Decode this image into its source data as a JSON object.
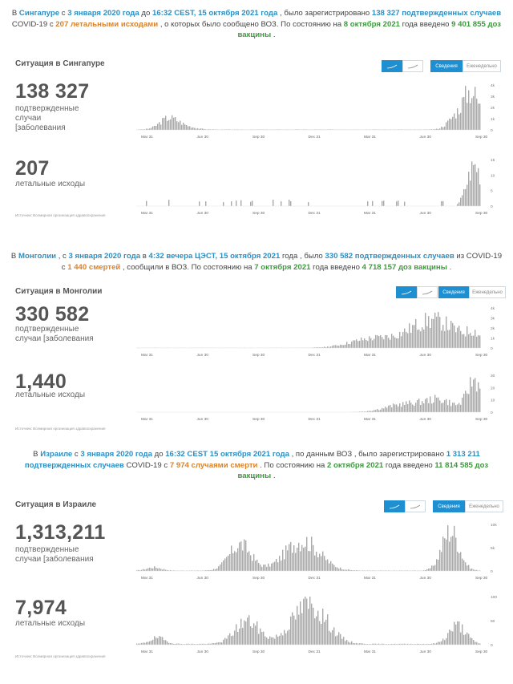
{
  "x_ticks": [
    "Mar 31",
    "Jun 30",
    "Sep 30",
    "Dec 31",
    "Mar 31",
    "Jun 30",
    "Sep 30"
  ],
  "toggle": {
    "weekly_active": "Ежедневно",
    "daily": "Ежедневно"
  },
  "source": {
    "label": "Источник:",
    "org": "Всемирная организация здравоохранения"
  },
  "accent_color": "#1e8fd0",
  "bar_color": "#a9a9a9",
  "countries": [
    {
      "intro": {
        "p1": "В ",
        "country": "Сингапуре",
        "p2": " с ",
        "start": "3 января 2020 года",
        "p3": " до ",
        "until": "16:32 CEST, 15 октября 2021 года",
        "p4": " , было зарегистрировано ",
        "cases": "138 327 подтвержденных случаев",
        "p5": " COVID-19 с ",
        "deaths": "207 летальными исходами",
        "p6": " , о которых было сообщено ВОЗ. По состоянию на ",
        "vax_date": "8 октября 2021",
        "p7": " года введено ",
        "vax": "9 401 855 доз вакцины",
        "p8": " ."
      },
      "title": "Ситуация в Сингапуре",
      "cases_total": "138 327",
      "cases_label": [
        "подтвержденные",
        "случаи",
        "[заболевания"
      ],
      "deaths_total": "207",
      "deaths_label": [
        "летальные исходы"
      ],
      "toggle_left": "Сведения",
      "toggle_right": "Еженедельно",
      "cases_yticks": [
        "4k",
        "3k",
        "2k",
        "1k",
        "0"
      ],
      "deaths_yticks": [
        "15",
        "10",
        "5",
        "0"
      ]
    },
    {
      "intro": {
        "p1": "В ",
        "country": "Монголии",
        "p2": " , с ",
        "start": "3 января 2020 года",
        "p3": " в ",
        "until": "4:32 вечера ЦЭСТ, 15 октября 2021",
        "p4": " года , было ",
        "cases": "330 582 подтвержденных случаев",
        "p5": " из COVID-19 с ",
        "deaths": "1 440 смертей",
        "p6": " , сообщили в ВОЗ. По состоянию на ",
        "vax_date": "7 октября 2021",
        "p7": " года введено ",
        "vax": "4 718 157 доз вакцины",
        "p8": " ."
      },
      "title": "Ситуация в Монголии",
      "cases_total": "330 582",
      "cases_label": [
        "подтвержденные",
        "случаи [заболевания"
      ],
      "deaths_total": "1,440",
      "deaths_label": [
        "летальные исходы"
      ],
      "toggle_left": "Сведения",
      "toggle_right": "Еженедельно",
      "cases_yticks": [
        "4k",
        "3k",
        "2k",
        "1k",
        "0"
      ],
      "deaths_yticks": [
        "30",
        "20",
        "10",
        "0"
      ]
    },
    {
      "intro": {
        "p1": "В ",
        "country": "Израиле",
        "p2": " с ",
        "start": "3 января 2020 года",
        "p3": " до ",
        "until": "16:32 CEST 15 октября 2021 года",
        "p4": " , по данным ВОЗ , было зарегистрировано ",
        "cases": "1 313 211 подтвержденных случаев",
        "p5": " COVID-19 с ",
        "deaths": "7 974 случаями смерти",
        "p6": " . По состоянию на ",
        "vax_date": "2 октября 2021",
        "p7": " года введено ",
        "vax": "11 814 585 доз вакцины",
        "p8": " ."
      },
      "title": "Ситуация в Израиле",
      "cases_total": "1,313,211",
      "cases_label": [
        "подтвержденные",
        "случаи [заболевания"
      ],
      "deaths_total": "7,974",
      "deaths_label": [
        "летальные исходы"
      ],
      "toggle_left": "Сведения",
      "toggle_right": "Еженедельно",
      "cases_yticks": [
        "10k",
        "5k",
        "0"
      ],
      "deaths_yticks": [
        "100",
        "50",
        "0"
      ]
    }
  ]
}
